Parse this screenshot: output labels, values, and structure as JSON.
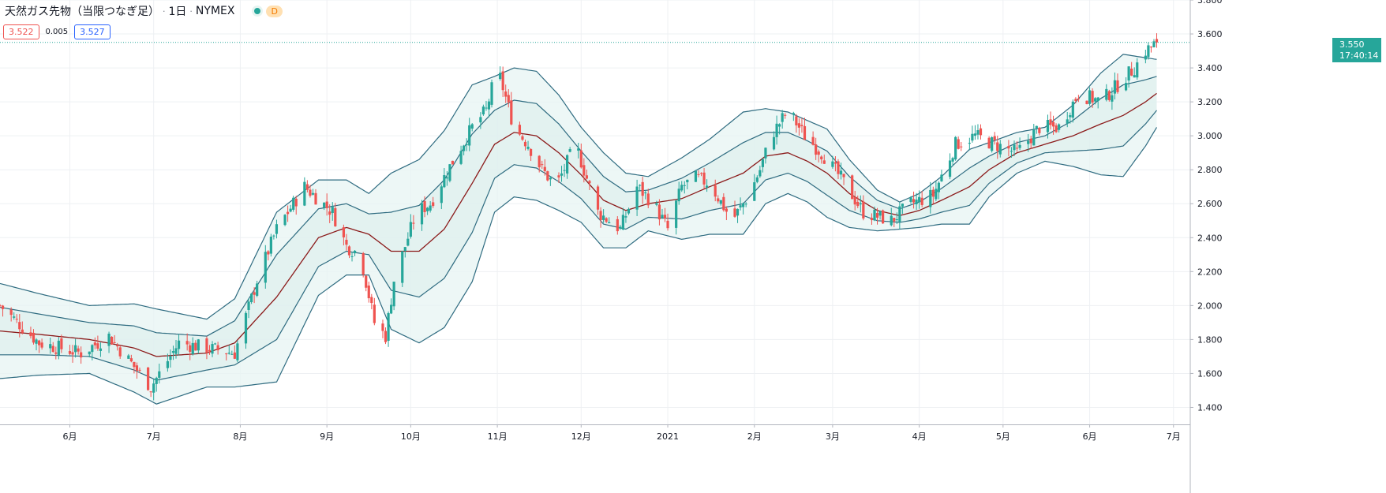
{
  "header": {
    "symbol": "天然ガス先物（当限つなぎ足）",
    "sep1": "·",
    "interval": "1日",
    "sep2": "·",
    "exchange": "NYMEX",
    "badge": "D"
  },
  "quotes": {
    "bid": "3.522",
    "spread": "0.005",
    "ask": "3.527"
  },
  "last_price": {
    "price": "3.550",
    "countdown": "17:40:14"
  },
  "colors": {
    "up": "#26a69a",
    "down": "#ef5350",
    "basis": "#8b1a1a",
    "band": "#2e6b80",
    "fill": "#e7f4f3",
    "pricetag": "#26a69a"
  },
  "chart_data": {
    "type": "candlestick",
    "title": "天然ガス先物（当限つなぎ足） · 1日 · NYMEX",
    "indicator": "Bollinger Bands (basis, ±1σ, ±2σ)",
    "ylim": [
      1.3,
      3.8
    ],
    "y_ticks": [
      "1.400",
      "1.600",
      "1.800",
      "2.000",
      "2.200",
      "2.400",
      "2.600",
      "2.800",
      "3.000",
      "3.200",
      "3.400",
      "3.600",
      "3.800"
    ],
    "x_ticks": [
      "6月",
      "7月",
      "8月",
      "9月",
      "10月",
      "11月",
      "12月",
      "2021",
      "2月",
      "3月",
      "4月",
      "5月",
      "6月",
      "7月"
    ],
    "x_tick_days": [
      21,
      51,
      82,
      113,
      143,
      174,
      204,
      235,
      266,
      294,
      325,
      355,
      386,
      416
    ],
    "x_range": [
      -4,
      422
    ],
    "last_close": 3.55,
    "start_day": -4,
    "end_day": 410,
    "bands": {
      "day": [
        -4,
        10,
        28,
        44,
        52,
        70,
        80,
        95,
        110,
        120,
        128,
        136,
        146,
        155,
        165,
        173,
        180,
        188,
        196,
        204,
        212,
        220,
        228,
        240,
        250,
        262,
        270,
        278,
        285,
        292,
        300,
        310,
        318,
        325,
        333,
        343,
        350,
        360,
        370,
        380,
        390,
        398,
        406,
        410
      ],
      "basis": [
        1.85,
        1.83,
        1.8,
        1.75,
        1.7,
        1.72,
        1.78,
        2.05,
        2.4,
        2.46,
        2.42,
        2.32,
        2.32,
        2.45,
        2.72,
        2.95,
        3.02,
        3.0,
        2.9,
        2.77,
        2.62,
        2.56,
        2.6,
        2.63,
        2.7,
        2.78,
        2.88,
        2.9,
        2.85,
        2.78,
        2.66,
        2.56,
        2.53,
        2.56,
        2.62,
        2.7,
        2.8,
        2.9,
        2.95,
        3.0,
        3.07,
        3.12,
        3.2,
        3.25
      ],
      "sd": [
        0.14,
        0.12,
        0.1,
        0.13,
        0.14,
        0.1,
        0.13,
        0.25,
        0.17,
        0.14,
        0.12,
        0.23,
        0.27,
        0.29,
        0.29,
        0.2,
        0.19,
        0.19,
        0.17,
        0.14,
        0.14,
        0.11,
        0.08,
        0.12,
        0.14,
        0.18,
        0.14,
        0.12,
        0.12,
        0.13,
        0.1,
        0.06,
        0.04,
        0.05,
        0.07,
        0.11,
        0.08,
        0.06,
        0.05,
        0.09,
        0.15,
        0.18,
        0.13,
        0.1
      ]
    },
    "price_path": {
      "day": [
        -4,
        10,
        25,
        35,
        45,
        50,
        60,
        70,
        80,
        88,
        95,
        105,
        115,
        120,
        125,
        130,
        134,
        137,
        145,
        150,
        158,
        165,
        170,
        174,
        180,
        185,
        190,
        195,
        202,
        206,
        210,
        218,
        224,
        230,
        235,
        240,
        245,
        250,
        258,
        264,
        268,
        272,
        278,
        284,
        290,
        297,
        305,
        315,
        322,
        330,
        338,
        345,
        352,
        360,
        368,
        375,
        382,
        390,
        396,
        402,
        406,
        410
      ],
      "close": [
        2.0,
        1.78,
        1.72,
        1.82,
        1.62,
        1.52,
        1.78,
        1.75,
        1.72,
        2.15,
        2.45,
        2.7,
        2.55,
        2.35,
        2.3,
        1.9,
        1.82,
        2.15,
        2.55,
        2.6,
        2.85,
        3.05,
        3.15,
        3.4,
        3.05,
        2.95,
        2.8,
        2.7,
        2.95,
        2.75,
        2.55,
        2.45,
        2.7,
        2.6,
        2.45,
        2.7,
        2.75,
        2.72,
        2.5,
        2.65,
        2.8,
        3.0,
        3.15,
        3.0,
        2.9,
        2.75,
        2.55,
        2.5,
        2.6,
        2.65,
        2.95,
        3.0,
        2.95,
        2.9,
        3.05,
        3.05,
        3.25,
        3.2,
        3.3,
        3.4,
        3.5,
        3.55
      ]
    }
  }
}
